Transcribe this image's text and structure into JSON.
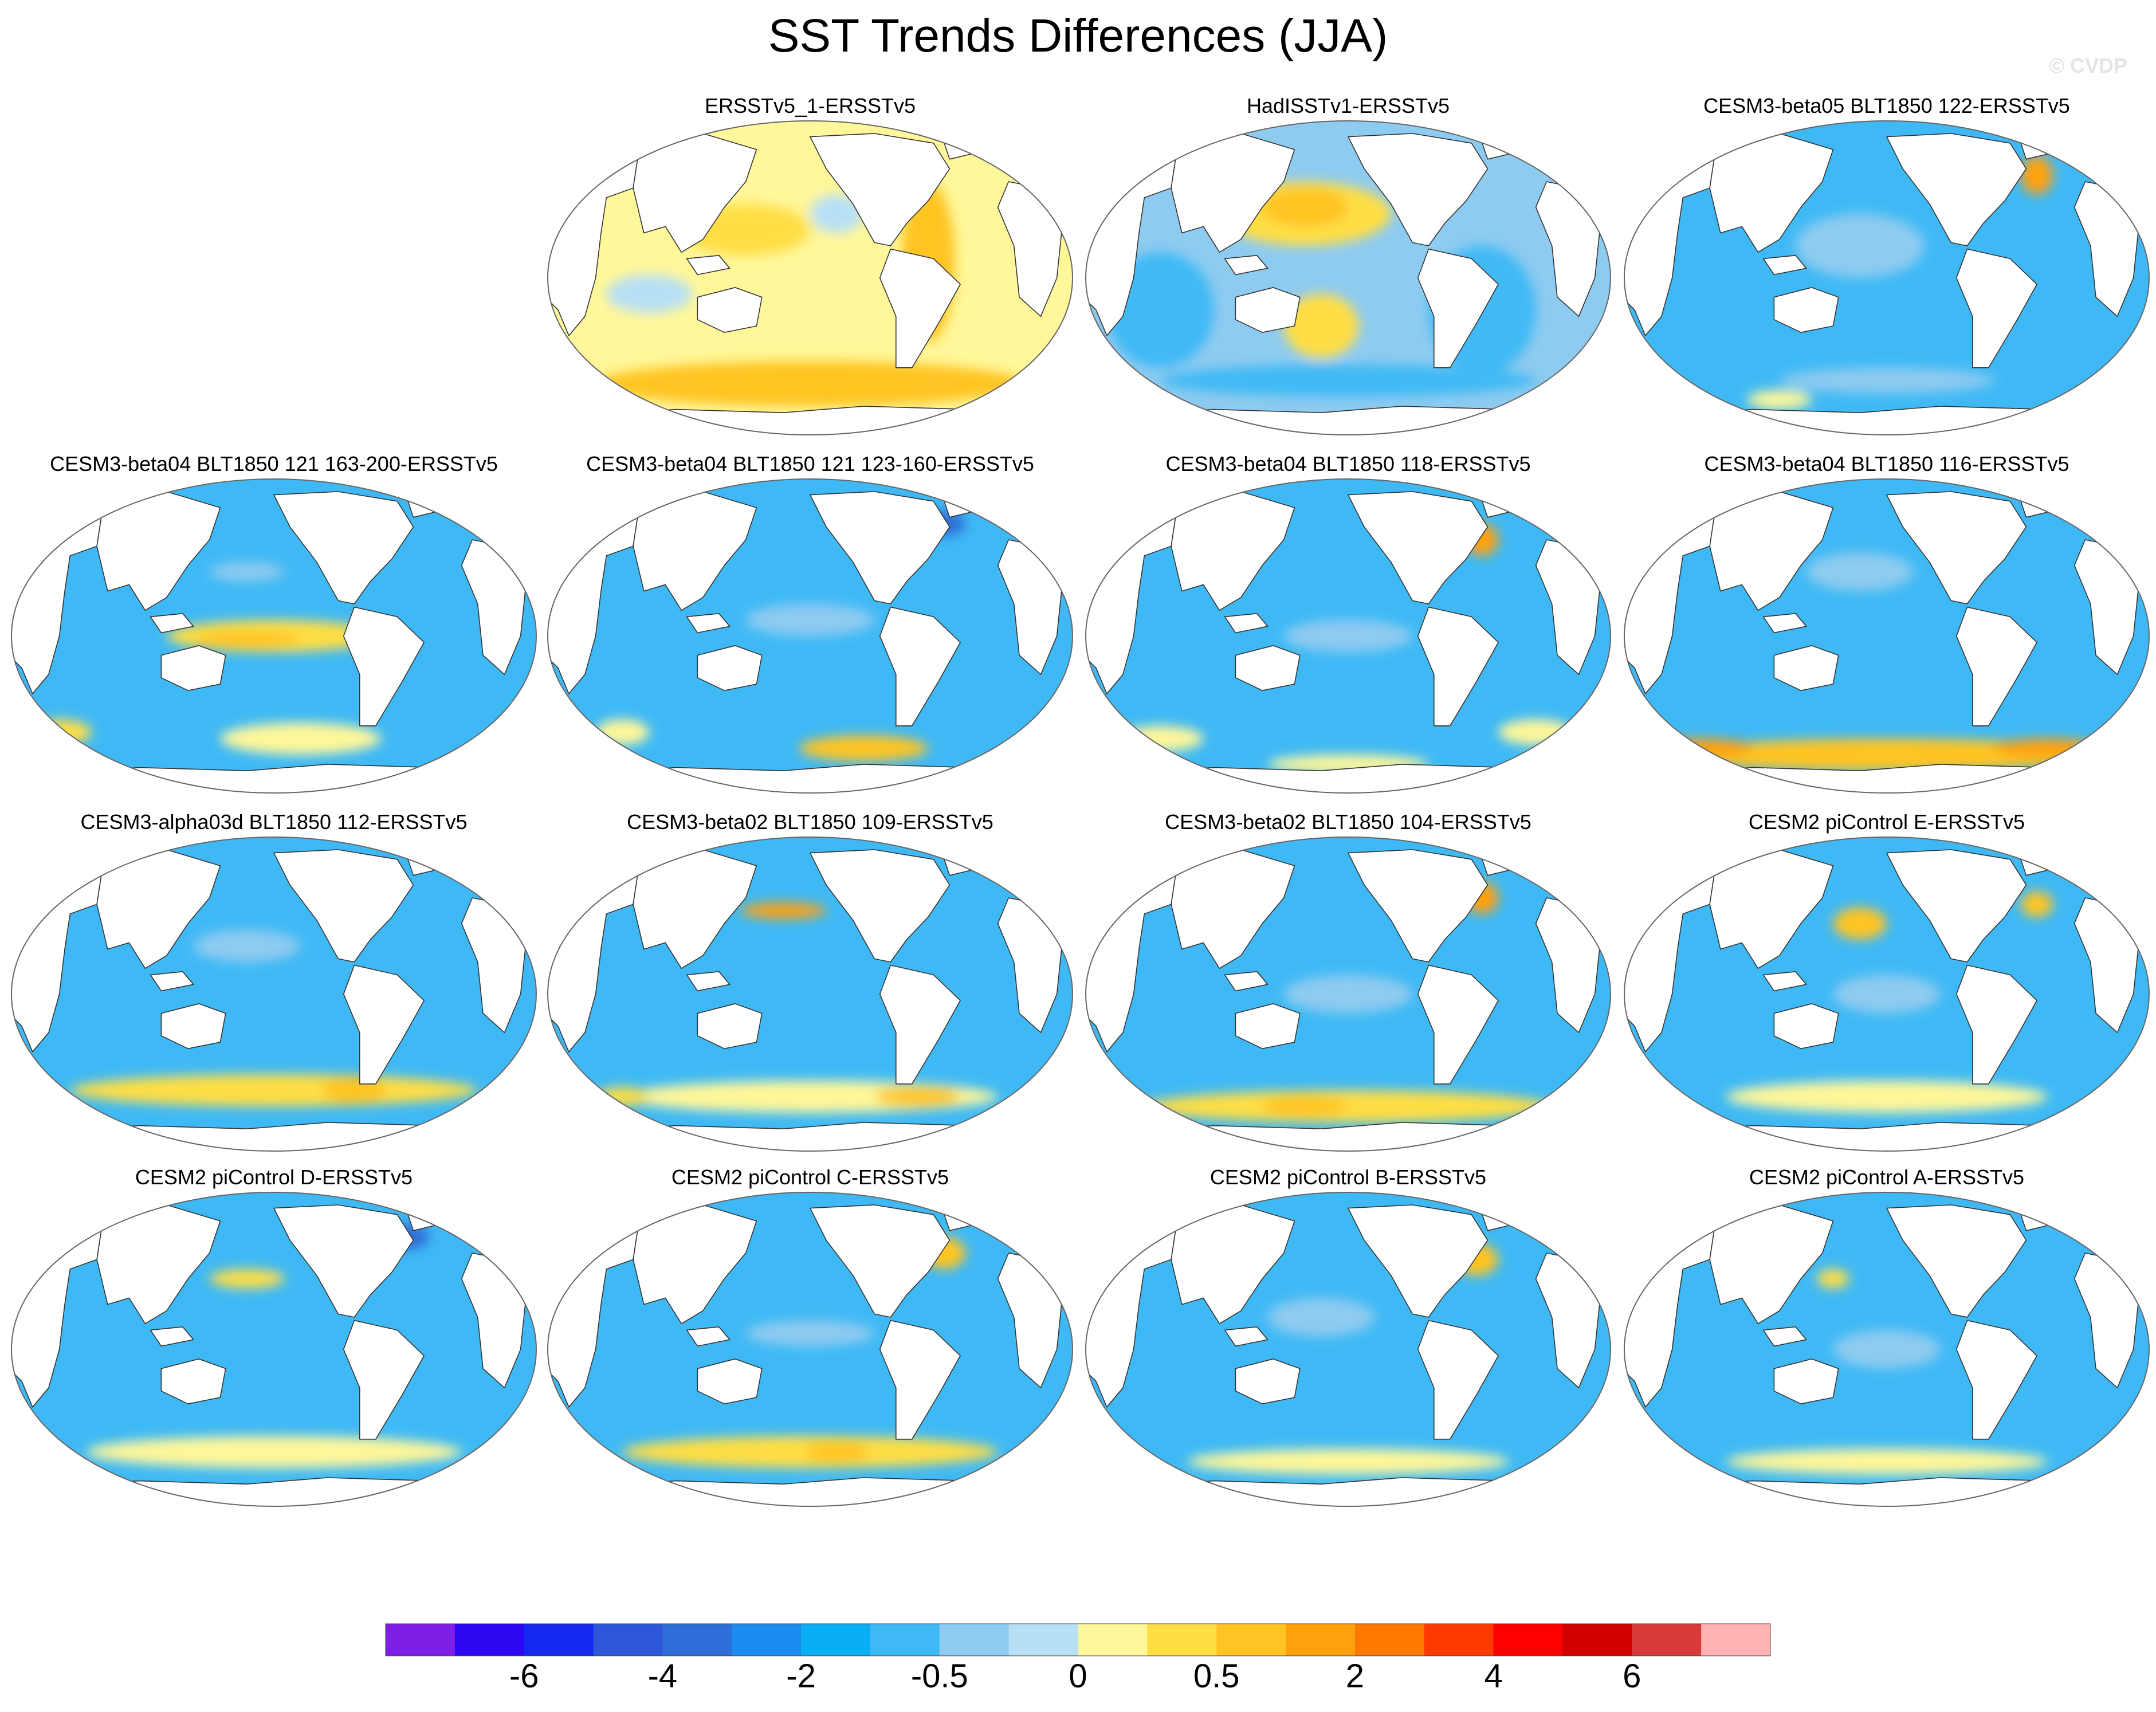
{
  "title": "SST Trends Differences (JJA)",
  "copyright": "© CVDP",
  "colors": {
    "land": "#ffffff",
    "coast": "#333333",
    "border": "#666666",
    "ocean_default": "#3fb9f5"
  },
  "panels": [
    {
      "title": "ERSSTv5_1-ERSSTv5",
      "base": "#fff79a",
      "blobs": [
        {
          "u": 0.72,
          "v": 0.45,
          "rx": 0.05,
          "ry": 0.25,
          "c": "#ffc423"
        },
        {
          "u": 0.38,
          "v": 0.35,
          "rx": 0.12,
          "ry": 0.08,
          "c": "#ffde44"
        },
        {
          "u": 0.5,
          "v": 0.83,
          "rx": 0.4,
          "ry": 0.07,
          "c": "#ffc423"
        },
        {
          "u": 0.2,
          "v": 0.55,
          "rx": 0.08,
          "ry": 0.06,
          "c": "#b8e0f5"
        },
        {
          "u": 0.55,
          "v": 0.3,
          "rx": 0.05,
          "ry": 0.06,
          "c": "#b8e0f5"
        }
      ]
    },
    {
      "title": "HadISSTv1-ERSSTv5",
      "base": "#8ecbf0",
      "blobs": [
        {
          "u": 0.42,
          "v": 0.3,
          "rx": 0.16,
          "ry": 0.1,
          "c": "#ffde44"
        },
        {
          "u": 0.42,
          "v": 0.28,
          "rx": 0.08,
          "ry": 0.06,
          "c": "#ffc423"
        },
        {
          "u": 0.45,
          "v": 0.65,
          "rx": 0.07,
          "ry": 0.1,
          "c": "#ffde44"
        },
        {
          "u": 0.15,
          "v": 0.6,
          "rx": 0.1,
          "ry": 0.18,
          "c": "#3fb9f5"
        },
        {
          "u": 0.75,
          "v": 0.6,
          "rx": 0.1,
          "ry": 0.2,
          "c": "#3fb9f5"
        },
        {
          "u": 0.5,
          "v": 0.82,
          "rx": 0.35,
          "ry": 0.05,
          "c": "#3fb9f5"
        }
      ]
    },
    {
      "title": "CESM3-beta05 BLT1850 122-ERSSTv5",
      "base": "#3fb9f5",
      "blobs": [
        {
          "u": 0.45,
          "v": 0.4,
          "rx": 0.12,
          "ry": 0.1,
          "c": "#8ecbf0"
        },
        {
          "u": 0.78,
          "v": 0.18,
          "rx": 0.03,
          "ry": 0.06,
          "c": "#ffa10c"
        },
        {
          "u": 0.5,
          "v": 0.82,
          "rx": 0.2,
          "ry": 0.04,
          "c": "#8ecbf0"
        },
        {
          "u": 0.3,
          "v": 0.88,
          "rx": 0.06,
          "ry": 0.03,
          "c": "#fff79a"
        }
      ]
    },
    {
      "title": "CESM3-beta04 BLT1850 121 163-200-ERSSTv5",
      "base": "#3fb9f5",
      "blobs": [
        {
          "u": 0.5,
          "v": 0.5,
          "rx": 0.2,
          "ry": 0.05,
          "c": "#ffde44"
        },
        {
          "u": 0.45,
          "v": 0.51,
          "rx": 0.1,
          "ry": 0.025,
          "c": "#ffc423"
        },
        {
          "u": 0.45,
          "v": 0.3,
          "rx": 0.07,
          "ry": 0.03,
          "c": "#8ecbf0"
        },
        {
          "u": 0.55,
          "v": 0.82,
          "rx": 0.15,
          "ry": 0.05,
          "c": "#fff79a"
        },
        {
          "u": 0.1,
          "v": 0.8,
          "rx": 0.06,
          "ry": 0.04,
          "c": "#ffde44"
        }
      ]
    },
    {
      "title": "CESM3-beta04 BLT1850 121 123-160-ERSSTv5",
      "base": "#3fb9f5",
      "blobs": [
        {
          "u": 0.5,
          "v": 0.45,
          "rx": 0.12,
          "ry": 0.05,
          "c": "#8ecbf0"
        },
        {
          "u": 0.6,
          "v": 0.85,
          "rx": 0.12,
          "ry": 0.04,
          "c": "#ffc423"
        },
        {
          "u": 0.75,
          "v": 0.15,
          "rx": 0.04,
          "ry": 0.04,
          "c": "#2d6ed8"
        },
        {
          "u": 0.3,
          "v": 0.12,
          "rx": 0.06,
          "ry": 0.03,
          "c": "#2d6ed8"
        },
        {
          "u": 0.15,
          "v": 0.8,
          "rx": 0.05,
          "ry": 0.04,
          "c": "#fff79a"
        }
      ]
    },
    {
      "title": "CESM3-beta04 BLT1850 118-ERSSTv5",
      "base": "#3fb9f5",
      "blobs": [
        {
          "u": 0.75,
          "v": 0.2,
          "rx": 0.03,
          "ry": 0.05,
          "c": "#ffa10c"
        },
        {
          "u": 0.5,
          "v": 0.5,
          "rx": 0.12,
          "ry": 0.05,
          "c": "#8ecbf0"
        },
        {
          "u": 0.15,
          "v": 0.82,
          "rx": 0.08,
          "ry": 0.04,
          "c": "#fff79a"
        },
        {
          "u": 0.85,
          "v": 0.8,
          "rx": 0.07,
          "ry": 0.04,
          "c": "#fff79a"
        },
        {
          "u": 0.5,
          "v": 0.9,
          "rx": 0.15,
          "ry": 0.03,
          "c": "#fff79a"
        }
      ]
    },
    {
      "title": "CESM3-beta04 BLT1850 116-ERSSTv5",
      "base": "#3fb9f5",
      "blobs": [
        {
          "u": 0.5,
          "v": 0.87,
          "rx": 0.4,
          "ry": 0.05,
          "c": "#ffc423"
        },
        {
          "u": 0.45,
          "v": 0.3,
          "rx": 0.1,
          "ry": 0.06,
          "c": "#8ecbf0"
        },
        {
          "u": 0.15,
          "v": 0.85,
          "rx": 0.1,
          "ry": 0.03,
          "c": "#ffa10c"
        },
        {
          "u": 0.8,
          "v": 0.85,
          "rx": 0.1,
          "ry": 0.03,
          "c": "#ffa10c"
        }
      ]
    },
    {
      "title": "CESM3-alpha03d BLT1850 112-ERSSTv5",
      "base": "#3fb9f5",
      "blobs": [
        {
          "u": 0.5,
          "v": 0.8,
          "rx": 0.38,
          "ry": 0.05,
          "c": "#ffde44"
        },
        {
          "u": 0.65,
          "v": 0.8,
          "rx": 0.06,
          "ry": 0.04,
          "c": "#ffc423"
        },
        {
          "u": 0.45,
          "v": 0.35,
          "rx": 0.1,
          "ry": 0.05,
          "c": "#8ecbf0"
        },
        {
          "u": 0.7,
          "v": 0.15,
          "rx": 0.03,
          "ry": 0.04,
          "c": "#ffde44"
        }
      ]
    },
    {
      "title": "CESM3-beta02 BLT1850 109-ERSSTv5",
      "base": "#3fb9f5",
      "blobs": [
        {
          "u": 0.45,
          "v": 0.24,
          "rx": 0.08,
          "ry": 0.025,
          "c": "#ffa10c"
        },
        {
          "u": 0.5,
          "v": 0.82,
          "rx": 0.35,
          "ry": 0.05,
          "c": "#fff79a"
        },
        {
          "u": 0.7,
          "v": 0.82,
          "rx": 0.08,
          "ry": 0.03,
          "c": "#ffc423"
        },
        {
          "u": 0.15,
          "v": 0.82,
          "rx": 0.05,
          "ry": 0.03,
          "c": "#ffde44"
        }
      ]
    },
    {
      "title": "CESM3-beta02 BLT1850 104-ERSSTv5",
      "base": "#3fb9f5",
      "blobs": [
        {
          "u": 0.5,
          "v": 0.85,
          "rx": 0.38,
          "ry": 0.05,
          "c": "#ffde44"
        },
        {
          "u": 0.42,
          "v": 0.85,
          "rx": 0.08,
          "ry": 0.03,
          "c": "#ffc423"
        },
        {
          "u": 0.75,
          "v": 0.2,
          "rx": 0.03,
          "ry": 0.05,
          "c": "#ffa10c"
        },
        {
          "u": 0.5,
          "v": 0.5,
          "rx": 0.12,
          "ry": 0.06,
          "c": "#8ecbf0"
        }
      ]
    },
    {
      "title": "CESM2 piControl E-ERSSTv5",
      "base": "#3fb9f5",
      "blobs": [
        {
          "u": 0.45,
          "v": 0.28,
          "rx": 0.05,
          "ry": 0.05,
          "c": "#ffc423"
        },
        {
          "u": 0.78,
          "v": 0.22,
          "rx": 0.03,
          "ry": 0.04,
          "c": "#ffc423"
        },
        {
          "u": 0.5,
          "v": 0.82,
          "rx": 0.3,
          "ry": 0.05,
          "c": "#fff79a"
        },
        {
          "u": 0.5,
          "v": 0.5,
          "rx": 0.1,
          "ry": 0.06,
          "c": "#8ecbf0"
        }
      ]
    },
    {
      "title": "CESM2 piControl D-ERSSTv5",
      "base": "#3fb9f5",
      "blobs": [
        {
          "u": 0.45,
          "v": 0.28,
          "rx": 0.07,
          "ry": 0.03,
          "c": "#ffde44"
        },
        {
          "u": 0.5,
          "v": 0.82,
          "rx": 0.35,
          "ry": 0.05,
          "c": "#fff79a"
        },
        {
          "u": 0.3,
          "v": 0.12,
          "rx": 0.08,
          "ry": 0.03,
          "c": "#2d6ed8"
        },
        {
          "u": 0.75,
          "v": 0.15,
          "rx": 0.04,
          "ry": 0.04,
          "c": "#2d6ed8"
        }
      ]
    },
    {
      "title": "CESM2 piControl C-ERSSTv5",
      "base": "#3fb9f5",
      "blobs": [
        {
          "u": 0.75,
          "v": 0.2,
          "rx": 0.04,
          "ry": 0.05,
          "c": "#ffc423"
        },
        {
          "u": 0.5,
          "v": 0.45,
          "rx": 0.12,
          "ry": 0.04,
          "c": "#8ecbf0"
        },
        {
          "u": 0.5,
          "v": 0.82,
          "rx": 0.35,
          "ry": 0.05,
          "c": "#ffde44"
        },
        {
          "u": 0.55,
          "v": 0.82,
          "rx": 0.06,
          "ry": 0.03,
          "c": "#ffc423"
        }
      ]
    },
    {
      "title": "CESM2 piControl B-ERSSTv5",
      "base": "#3fb9f5",
      "blobs": [
        {
          "u": 0.74,
          "v": 0.22,
          "rx": 0.04,
          "ry": 0.05,
          "c": "#ffc423"
        },
        {
          "u": 0.5,
          "v": 0.85,
          "rx": 0.3,
          "ry": 0.04,
          "c": "#fff79a"
        },
        {
          "u": 0.45,
          "v": 0.4,
          "rx": 0.1,
          "ry": 0.06,
          "c": "#8ecbf0"
        }
      ]
    },
    {
      "title": "CESM2 piControl A-ERSSTv5",
      "base": "#3fb9f5",
      "blobs": [
        {
          "u": 0.4,
          "v": 0.28,
          "rx": 0.03,
          "ry": 0.03,
          "c": "#ffde44"
        },
        {
          "u": 0.5,
          "v": 0.85,
          "rx": 0.3,
          "ry": 0.04,
          "c": "#fff79a"
        },
        {
          "u": 0.3,
          "v": 0.12,
          "rx": 0.08,
          "ry": 0.03,
          "c": "#2d6ed8"
        },
        {
          "u": 0.5,
          "v": 0.5,
          "rx": 0.1,
          "ry": 0.06,
          "c": "#8ecbf0"
        }
      ]
    }
  ],
  "colorbar": {
    "colors": [
      "#7e1fe8",
      "#2e06f2",
      "#1428f0",
      "#2d56d8",
      "#2d6ed8",
      "#1c8cf0",
      "#0aaef5",
      "#3fb9f5",
      "#8ecbf0",
      "#b8e0f5",
      "#fff79a",
      "#ffde44",
      "#ffc423",
      "#ffa10c",
      "#ff7800",
      "#ff3a00",
      "#ff0000",
      "#d20000",
      "#d83a3a",
      "#ffb3b3"
    ],
    "labels": [
      {
        "text": "-6",
        "boundary": 2
      },
      {
        "text": "-4",
        "boundary": 4
      },
      {
        "text": "-2",
        "boundary": 6
      },
      {
        "text": "-0.5",
        "boundary": 8
      },
      {
        "text": "0",
        "boundary": 10
      },
      {
        "text": "0.5",
        "boundary": 12
      },
      {
        "text": "2",
        "boundary": 14
      },
      {
        "text": "4",
        "boundary": 16
      },
      {
        "text": "6",
        "boundary": 18
      }
    ]
  }
}
